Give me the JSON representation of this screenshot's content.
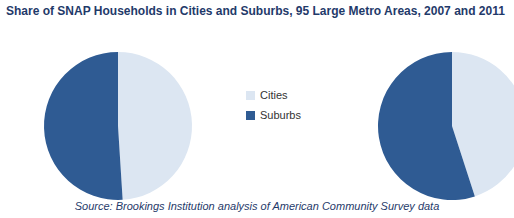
{
  "chart_data": {
    "type": "pie",
    "title": "Share of SNAP Households in Cities and Suburbs, 95 Large Metro Areas, 2007 and 2011",
    "categories": [
      "Cities",
      "Suburbs"
    ],
    "series": [
      {
        "values": [
          49,
          51
        ]
      },
      {
        "values": [
          45,
          55
        ]
      }
    ],
    "colors": [
      "#dce6f2",
      "#2f5b93"
    ],
    "legend": "center",
    "annotations": [
      "Source: Brookings Institution analysis of American Community Survey data"
    ]
  }
}
